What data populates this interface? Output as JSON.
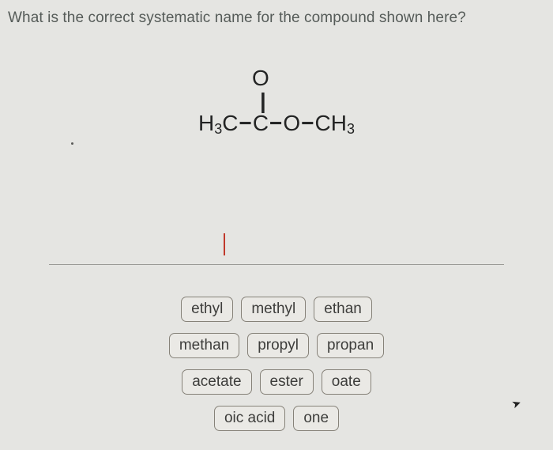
{
  "question": "What is the correct systematic name for the compound shown here?",
  "formula": {
    "left_group": "H",
    "left_sub": "3",
    "left_c": "C",
    "bond": "−",
    "carbonyl_o": "O",
    "carbonyl_dbl": "||",
    "carbonyl_c": "C",
    "oxy": "O",
    "right_c": "CH",
    "right_sub": "3"
  },
  "fragments": {
    "row1": [
      "ethyl",
      "methyl",
      "ethan"
    ],
    "row2": [
      "methan",
      "propyl",
      "propan"
    ],
    "row3": [
      "acetate",
      "ester",
      "oate"
    ],
    "row4": [
      "oic acid",
      "one"
    ]
  },
  "style": {
    "background": "#e5e5e2",
    "question_color": "#555b58",
    "formula_color": "#232424",
    "frag_border": "#868279",
    "frag_bg": "#eae9e5",
    "frag_text": "#3d3d3b",
    "tick_color": "#c0392b",
    "hr_color": "#9a9a96",
    "question_fontsize": 19,
    "formula_fontsize": 28,
    "frag_fontsize": 19
  }
}
